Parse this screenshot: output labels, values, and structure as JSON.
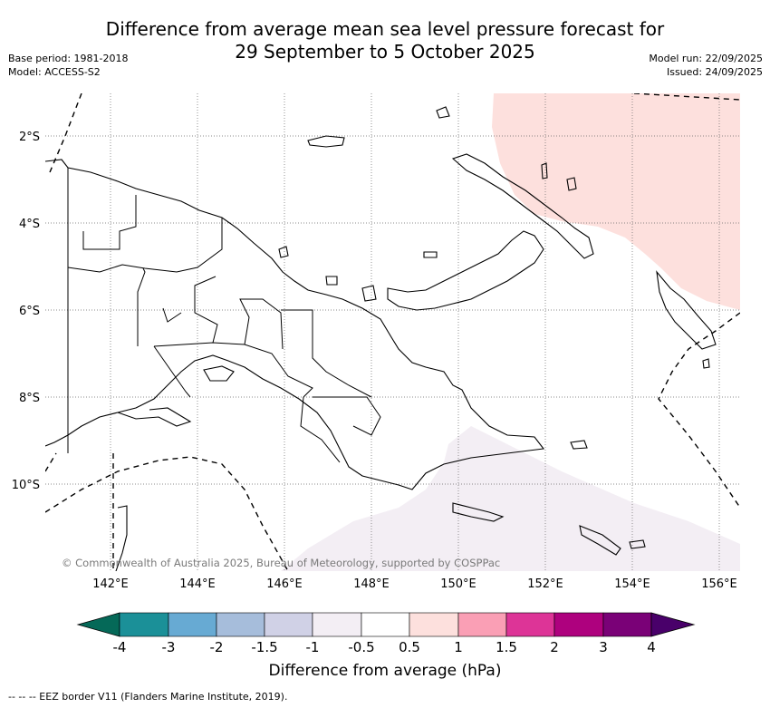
{
  "title": {
    "line1": "Difference from average mean sea level pressure forecast for",
    "line2": "29 September to 5 October 2025"
  },
  "meta": {
    "base_period": "Base period: 1981-2018",
    "model": "Model: ACCESS-S2",
    "model_run": "Model run: 22/09/2025",
    "issued": "Issued: 24/09/2025"
  },
  "map": {
    "lat_labels": [
      "2°S",
      "4°S",
      "6°S",
      "8°S",
      "10°S"
    ],
    "lon_labels": [
      "142°E",
      "144°E",
      "146°E",
      "148°E",
      "150°E",
      "152°E",
      "154°E",
      "156°E"
    ],
    "copyright": "© Commonwealth of Australia 2025, Bureau of Meteorology, supported by COSPPac",
    "shading": [
      {
        "category": "0.5 to 1",
        "color": "#fde0dd",
        "region": "north-east"
      },
      {
        "category": "-1 to -0.5",
        "color": "#f3eef4",
        "region": "south-east"
      }
    ]
  },
  "colorbar": {
    "title": "Difference from average (hPa)",
    "ticks": [
      "-4",
      "-3",
      "-2",
      "-1.5",
      "-1",
      "-0.5",
      "0.5",
      "1",
      "1.5",
      "2",
      "3",
      "4"
    ],
    "under_color": "#056958",
    "over_color": "#49006a",
    "colors": [
      "#1b9098",
      "#67aad3",
      "#a6bddb",
      "#d0d1e6",
      "#f3eef4",
      "#ffffff",
      "#fde0dd",
      "#fa9fb5",
      "#dd3497",
      "#ae017e",
      "#7a0177"
    ]
  },
  "footnote": "--  --  -- EEZ border V11 (Flanders Marine Institute, 2019)."
}
